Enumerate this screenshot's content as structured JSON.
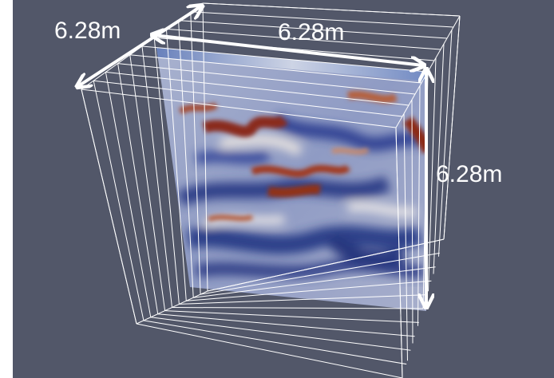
{
  "dimensions": {
    "width_label": "6.28m",
    "depth_label": "6.28m",
    "height_label": "6.28m"
  },
  "colors": {
    "background": "#525769",
    "wireframe": "#ffffff",
    "arrow": "#ffffff",
    "field_low": "#23327a",
    "field_mid": "#dcdde2",
    "field_high": "#8a2a1a"
  },
  "icons": [
    "double-arrow-icon"
  ]
}
